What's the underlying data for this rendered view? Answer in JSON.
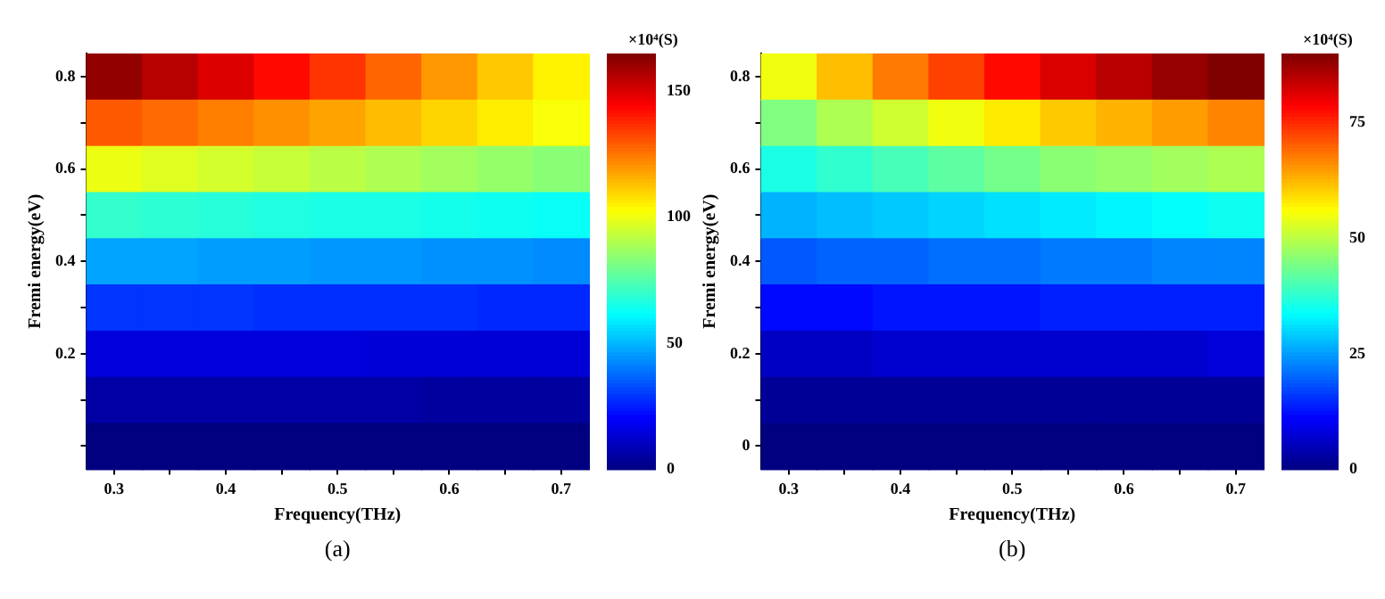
{
  "chart_data": [
    {
      "type": "heatmap",
      "xlabel": "Frequency(THz)",
      "ylabel": "Fremi energy(eV)",
      "clabel": "×10⁴(S)",
      "annotations": [
        "(a)"
      ],
      "categories": [
        "0.3",
        null,
        "0.4",
        null,
        "0.5",
        null,
        "0.6",
        null,
        "0.7"
      ],
      "y_categories": [
        "0.8",
        null,
        "0.6",
        null,
        "0.4",
        null,
        "0.2",
        null,
        null
      ],
      "clim": [
        0,
        165
      ],
      "cticks": [
        0,
        50,
        100,
        150
      ],
      "cells": [
        [
          162,
          156,
          150,
          143,
          136,
          128,
          120,
          112,
          105
        ],
        [
          130,
          127,
          124,
          121,
          118,
          114,
          110,
          106,
          102
        ],
        [
          100,
          98,
          96,
          94,
          92,
          90,
          88,
          86,
          84
        ],
        [
          70,
          69,
          68,
          67,
          66,
          66,
          65,
          64,
          63
        ],
        [
          47,
          47,
          46,
          46,
          45,
          45,
          44,
          44,
          43
        ],
        [
          29,
          29,
          29,
          28,
          28,
          28,
          28,
          27,
          27
        ],
        [
          15,
          15,
          15,
          15,
          15,
          14,
          14,
          14,
          14
        ],
        [
          6,
          6,
          6,
          6,
          6,
          6,
          5,
          5,
          5
        ],
        [
          0,
          0,
          0,
          0,
          0,
          0,
          0,
          0,
          0
        ]
      ]
    },
    {
      "type": "heatmap",
      "xlabel": "Frequency(THz)",
      "ylabel": "Fremi energy(eV)",
      "clabel": "×10⁴(S)",
      "annotations": [
        "(b)"
      ],
      "categories": [
        "0.3",
        null,
        "0.4",
        null,
        "0.5",
        null,
        "0.6",
        null,
        "0.7"
      ],
      "y_categories": [
        "0.8",
        null,
        "0.6",
        null,
        "0.4",
        null,
        "0.2",
        null,
        "0"
      ],
      "clim": [
        0,
        90
      ],
      "cticks": [
        0,
        25,
        50,
        75
      ],
      "cells": [
        [
          55,
          62,
          68,
          73,
          78,
          82,
          85,
          88,
          90
        ],
        [
          45,
          49,
          52,
          55,
          58,
          61,
          63,
          65,
          67
        ],
        [
          36,
          38,
          40,
          42,
          44,
          46,
          47,
          48,
          49
        ],
        [
          27,
          28,
          29,
          30,
          31,
          32,
          33,
          34,
          35
        ],
        [
          19,
          20,
          20,
          21,
          21,
          22,
          22,
          23,
          23
        ],
        [
          12,
          12,
          13,
          13,
          13,
          14,
          14,
          14,
          14
        ],
        [
          6,
          6,
          7,
          7,
          7,
          7,
          7,
          7,
          8
        ],
        [
          2,
          2,
          2,
          2,
          2,
          2,
          2,
          2,
          2
        ],
        [
          0,
          0,
          0,
          0,
          0,
          0,
          0,
          0,
          0
        ]
      ]
    }
  ]
}
